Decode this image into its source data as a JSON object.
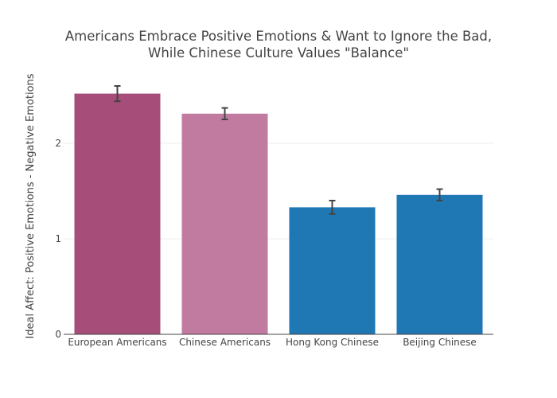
{
  "chart_data": {
    "type": "bar",
    "title_lines": [
      "Americans Embrace Positive Emotions & Want to Ignore the Bad,",
      "While Chinese Culture Values \"Balance\""
    ],
    "xlabel": "",
    "ylabel": "Ideal Affect: Positive Emotions - Negative Emotions",
    "ylim": [
      0,
      2.6
    ],
    "yticks": [
      0,
      1,
      2
    ],
    "ytick_labels": [
      "0",
      "1",
      "2"
    ],
    "grid": true,
    "categories": [
      "European Americans",
      "Chinese Americans",
      "Hong Kong Chinese",
      "Beijing Chinese"
    ],
    "values": [
      2.52,
      2.31,
      1.33,
      1.46
    ],
    "errors": [
      0.08,
      0.06,
      0.07,
      0.06
    ],
    "colors": [
      "#a64d79",
      "#c27ba0",
      "#1f77b4",
      "#1f77b4"
    ],
    "errorbar_color": "#444444"
  }
}
